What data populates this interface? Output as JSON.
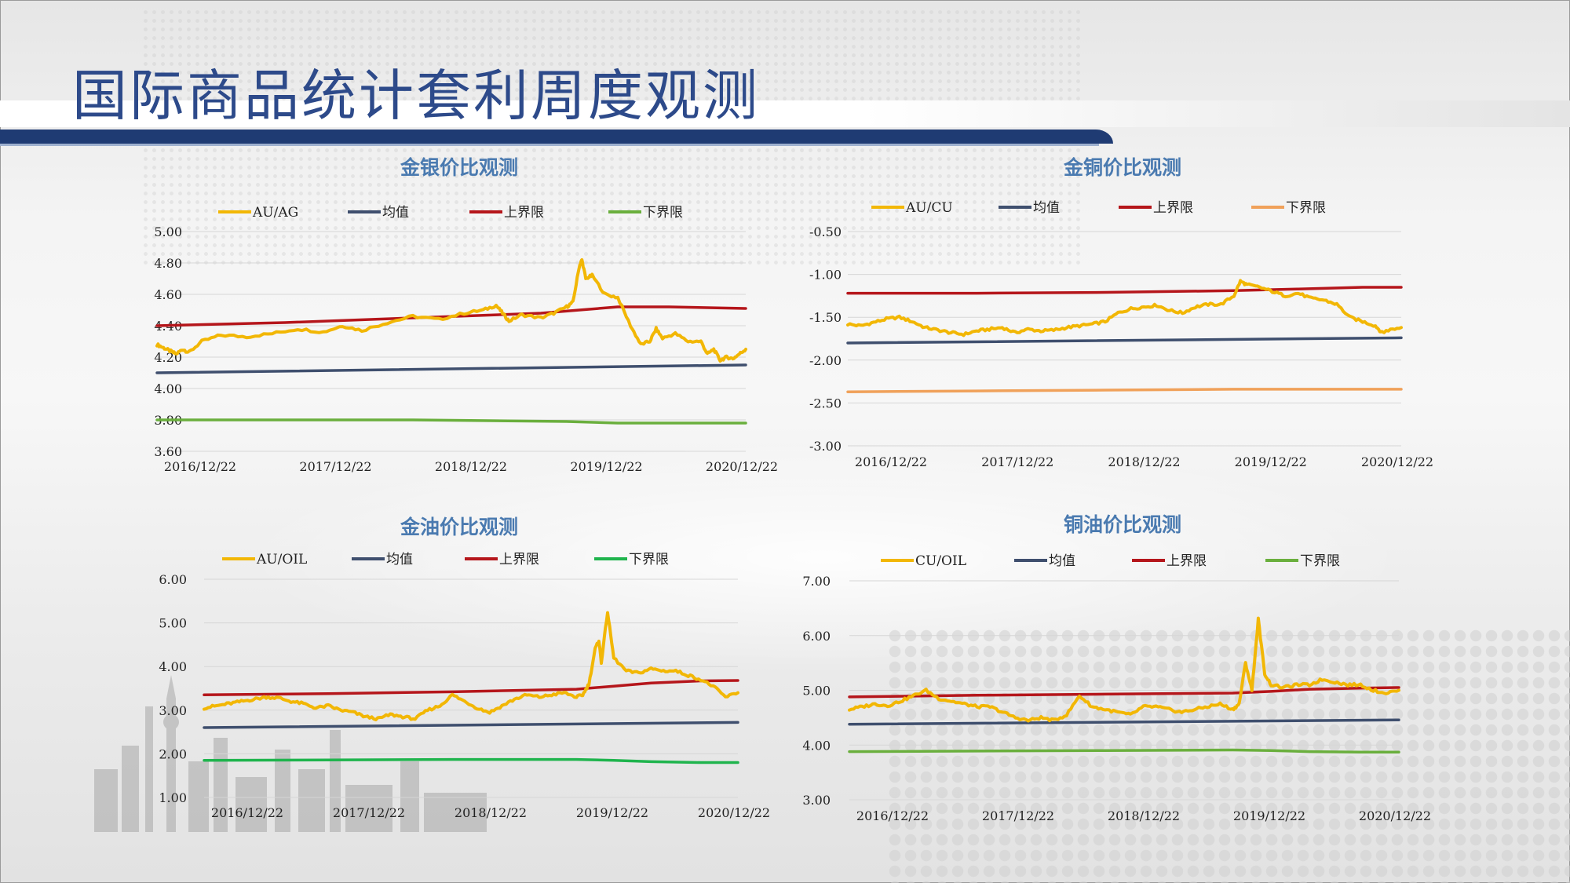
{
  "page": {
    "title": "国际商品统计套利周度观测"
  },
  "colors": {
    "title_text": "#2d4a8a",
    "title_bar": "#1f3b73",
    "panel_title": "#4a7ab0",
    "ratio": "#f2b705",
    "mean": "#3f4f6e",
    "upper": "#b5161b",
    "lower_green": "#6aaf3d",
    "lower_bright_green": "#1fb44d",
    "lower_orange": "#f0a15a"
  },
  "chart_data": [
    {
      "type": "line",
      "title": "金银价比观测",
      "x_ticks": [
        "2016/12/22",
        "2017/12/22",
        "2018/12/22",
        "2019/12/22",
        "2020/12/22"
      ],
      "y_ticks": [
        "5.00",
        "4.80",
        "4.60",
        "4.40",
        "4.20",
        "4.00",
        "3.80",
        "3.60"
      ],
      "ylim": [
        3.6,
        5.0
      ],
      "x_range": [
        0,
        4.6
      ],
      "legend_position": "top",
      "series": [
        {
          "name": "AU/AG",
          "role": "ratio",
          "color": "#f2b705",
          "x": [
            0,
            0.05,
            0.1,
            0.15,
            0.2,
            0.25,
            0.35,
            0.5,
            0.7,
            0.9,
            1.1,
            1.3,
            1.45,
            1.6,
            1.8,
            2.0,
            2.2,
            2.4,
            2.55,
            2.65,
            2.7,
            2.75,
            2.85,
            3.0,
            3.1,
            3.2,
            3.25,
            3.3,
            3.32,
            3.35,
            3.4,
            3.5,
            3.6,
            3.7,
            3.78,
            3.85,
            3.9,
            3.95,
            4.05,
            4.15,
            4.25,
            4.3,
            4.35,
            4.4,
            4.45,
            4.5,
            4.55,
            4.6
          ],
          "y": [
            4.28,
            4.26,
            4.24,
            4.22,
            4.25,
            4.23,
            4.3,
            4.34,
            4.33,
            4.35,
            4.38,
            4.36,
            4.4,
            4.37,
            4.42,
            4.46,
            4.44,
            4.48,
            4.5,
            4.53,
            4.48,
            4.43,
            4.47,
            4.45,
            4.48,
            4.52,
            4.55,
            4.78,
            4.82,
            4.7,
            4.72,
            4.6,
            4.58,
            4.4,
            4.28,
            4.3,
            4.38,
            4.32,
            4.35,
            4.3,
            4.3,
            4.22,
            4.25,
            4.18,
            4.2,
            4.19,
            4.22,
            4.25
          ]
        },
        {
          "name": "均值",
          "role": "mean",
          "color": "#3f4f6e",
          "x": [
            0,
            4.6
          ],
          "y": [
            4.1,
            4.15
          ]
        },
        {
          "name": "上界限",
          "role": "upper",
          "color": "#b5161b",
          "x": [
            0,
            1,
            2,
            3,
            3.3,
            3.6,
            4.0,
            4.6
          ],
          "y": [
            4.4,
            4.42,
            4.45,
            4.48,
            4.5,
            4.52,
            4.52,
            4.51
          ]
        },
        {
          "name": "下界限",
          "role": "lower",
          "color": "#6aaf3d",
          "x": [
            0,
            1,
            2,
            3.2,
            3.6,
            4.0,
            4.6
          ],
          "y": [
            3.8,
            3.8,
            3.8,
            3.79,
            3.78,
            3.78,
            3.78
          ]
        }
      ]
    },
    {
      "type": "line",
      "title": "金铜价比观测",
      "x_ticks": [
        "2016/12/22",
        "2017/12/22",
        "2018/12/22",
        "2019/12/22",
        "2020/12/22"
      ],
      "y_ticks": [
        "-0.50",
        "-1.00",
        "-1.50",
        "-2.00",
        "-2.50",
        "-3.00"
      ],
      "ylim": [
        -3.0,
        -0.5
      ],
      "x_range": [
        0,
        4.3
      ],
      "legend_position": "top",
      "series": [
        {
          "name": "AU/CU",
          "role": "ratio",
          "color": "#f2b705",
          "x": [
            0,
            0.1,
            0.2,
            0.3,
            0.4,
            0.5,
            0.6,
            0.7,
            0.8,
            0.9,
            1.0,
            1.1,
            1.2,
            1.3,
            1.4,
            1.5,
            1.6,
            1.7,
            1.8,
            1.9,
            2.0,
            2.1,
            2.2,
            2.3,
            2.4,
            2.5,
            2.6,
            2.7,
            2.8,
            2.9,
            3.0,
            3.05,
            3.1,
            3.2,
            3.3,
            3.4,
            3.5,
            3.6,
            3.7,
            3.8,
            3.9,
            4.0,
            4.1,
            4.15,
            4.2,
            4.3
          ],
          "y": [
            -1.58,
            -1.6,
            -1.56,
            -1.52,
            -1.5,
            -1.55,
            -1.62,
            -1.65,
            -1.68,
            -1.7,
            -1.66,
            -1.64,
            -1.62,
            -1.68,
            -1.64,
            -1.66,
            -1.65,
            -1.62,
            -1.6,
            -1.58,
            -1.55,
            -1.45,
            -1.4,
            -1.38,
            -1.36,
            -1.42,
            -1.45,
            -1.38,
            -1.35,
            -1.35,
            -1.25,
            -1.08,
            -1.12,
            -1.15,
            -1.2,
            -1.25,
            -1.22,
            -1.28,
            -1.3,
            -1.35,
            -1.5,
            -1.55,
            -1.6,
            -1.68,
            -1.65,
            -1.62
          ]
        },
        {
          "name": "均值",
          "role": "mean",
          "color": "#3f4f6e",
          "x": [
            0,
            4.3
          ],
          "y": [
            -1.8,
            -1.74
          ]
        },
        {
          "name": "上界限",
          "role": "upper",
          "color": "#b5161b",
          "x": [
            0,
            1,
            2,
            3,
            3.5,
            4.0,
            4.3
          ],
          "y": [
            -1.22,
            -1.22,
            -1.21,
            -1.19,
            -1.17,
            -1.15,
            -1.15
          ]
        },
        {
          "name": "下界限",
          "role": "lower",
          "color": "#f0a15a",
          "x": [
            0,
            1,
            2,
            3,
            4.3
          ],
          "y": [
            -2.37,
            -2.36,
            -2.35,
            -2.34,
            -2.34
          ]
        }
      ]
    },
    {
      "type": "line",
      "title": "金油价比观测",
      "x_ticks": [
        "2016/12/22",
        "2017/12/22",
        "2018/12/22",
        "2019/12/22",
        "2020/12/22"
      ],
      "y_ticks": [
        "6.00",
        "5.00",
        "4.00",
        "3.00",
        "2.00",
        "1.00"
      ],
      "ylim": [
        1.0,
        6.0
      ],
      "x_range": [
        0,
        4.3
      ],
      "legend_position": "top",
      "series": [
        {
          "name": "AU/OIL",
          "role": "ratio",
          "color": "#f2b705",
          "x": [
            0,
            0.1,
            0.2,
            0.3,
            0.4,
            0.5,
            0.6,
            0.7,
            0.8,
            0.9,
            1.0,
            1.1,
            1.2,
            1.3,
            1.4,
            1.5,
            1.6,
            1.7,
            1.8,
            1.9,
            2.0,
            2.1,
            2.2,
            2.3,
            2.4,
            2.5,
            2.6,
            2.7,
            2.8,
            2.9,
            3.0,
            3.05,
            3.1,
            3.15,
            3.18,
            3.2,
            3.25,
            3.3,
            3.4,
            3.5,
            3.6,
            3.7,
            3.8,
            3.9,
            4.0,
            4.1,
            4.2,
            4.3
          ],
          "y": [
            3.05,
            3.1,
            3.15,
            3.2,
            3.25,
            3.3,
            3.28,
            3.2,
            3.15,
            3.05,
            3.1,
            3.0,
            2.95,
            2.85,
            2.8,
            2.9,
            2.85,
            2.8,
            3.0,
            3.1,
            3.35,
            3.2,
            3.05,
            2.95,
            3.1,
            3.25,
            3.35,
            3.3,
            3.35,
            3.4,
            3.3,
            3.35,
            3.6,
            4.4,
            4.6,
            4.1,
            5.25,
            4.2,
            3.9,
            3.85,
            3.95,
            3.9,
            3.9,
            3.8,
            3.7,
            3.55,
            3.3,
            3.4
          ]
        },
        {
          "name": "均值",
          "role": "mean",
          "color": "#3f4f6e",
          "x": [
            0,
            4.3
          ],
          "y": [
            2.6,
            2.72
          ]
        },
        {
          "name": "上界限",
          "role": "upper",
          "color": "#b5161b",
          "x": [
            0,
            1,
            2,
            3,
            3.3,
            3.6,
            4.0,
            4.3
          ],
          "y": [
            3.35,
            3.38,
            3.42,
            3.48,
            3.55,
            3.62,
            3.67,
            3.68
          ]
        },
        {
          "name": "下界限",
          "role": "lower",
          "color": "#1fb44d",
          "x": [
            0,
            1,
            2,
            3,
            3.3,
            3.6,
            4.0,
            4.3
          ],
          "y": [
            1.85,
            1.86,
            1.87,
            1.87,
            1.85,
            1.82,
            1.8,
            1.8
          ]
        }
      ]
    },
    {
      "type": "line",
      "title": "铜油价比观测",
      "x_ticks": [
        "2016/12/22",
        "2017/12/22",
        "2018/12/22",
        "2019/12/22",
        "2020/12/22"
      ],
      "y_ticks": [
        "7.00",
        "6.00",
        "5.00",
        "4.00",
        "3.00"
      ],
      "ylim": [
        3.0,
        7.0
      ],
      "x_range": [
        0,
        4.3
      ],
      "legend_position": "top",
      "series": [
        {
          "name": "CU/OIL",
          "role": "ratio",
          "color": "#f2b705",
          "x": [
            0,
            0.1,
            0.2,
            0.3,
            0.4,
            0.5,
            0.6,
            0.7,
            0.8,
            0.9,
            1.0,
            1.1,
            1.2,
            1.3,
            1.4,
            1.5,
            1.6,
            1.7,
            1.8,
            1.9,
            2.0,
            2.1,
            2.2,
            2.3,
            2.4,
            2.5,
            2.6,
            2.7,
            2.8,
            2.9,
            3.0,
            3.05,
            3.1,
            3.15,
            3.2,
            3.25,
            3.3,
            3.4,
            3.5,
            3.6,
            3.7,
            3.8,
            3.9,
            4.0,
            4.1,
            4.2,
            4.3
          ],
          "y": [
            4.65,
            4.7,
            4.75,
            4.72,
            4.8,
            4.9,
            5.0,
            4.85,
            4.8,
            4.75,
            4.7,
            4.7,
            4.6,
            4.5,
            4.45,
            4.5,
            4.45,
            4.55,
            4.9,
            4.7,
            4.65,
            4.6,
            4.55,
            4.7,
            4.7,
            4.65,
            4.6,
            4.65,
            4.7,
            4.75,
            4.65,
            4.75,
            5.5,
            5.0,
            6.3,
            5.3,
            5.1,
            5.05,
            5.1,
            5.1,
            5.2,
            5.15,
            5.1,
            5.1,
            5.0,
            4.95,
            5.0
          ]
        },
        {
          "name": "均值",
          "role": "mean",
          "color": "#3f4f6e",
          "x": [
            0,
            4.3
          ],
          "y": [
            4.38,
            4.46
          ]
        },
        {
          "name": "上界限",
          "role": "upper",
          "color": "#b5161b",
          "x": [
            0,
            1,
            2,
            3,
            3.3,
            3.6,
            4.0,
            4.3
          ],
          "y": [
            4.88,
            4.91,
            4.93,
            4.95,
            4.98,
            5.02,
            5.04,
            5.05
          ]
        },
        {
          "name": "下界限",
          "role": "lower",
          "color": "#6aaf3d",
          "x": [
            0,
            1,
            2,
            3,
            3.3,
            3.6,
            4.0,
            4.3
          ],
          "y": [
            3.88,
            3.89,
            3.9,
            3.91,
            3.9,
            3.88,
            3.87,
            3.87
          ]
        }
      ]
    }
  ]
}
